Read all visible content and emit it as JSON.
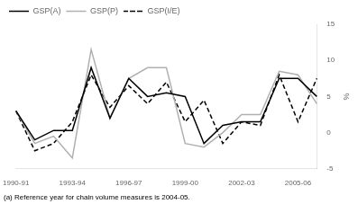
{
  "chart_data": {
    "type": "line",
    "categories": [
      "1990-91",
      null,
      null,
      "1993-94",
      null,
      null,
      "1996-97",
      null,
      null,
      "1999-00",
      null,
      null,
      "2002-03",
      null,
      null,
      "2005-06",
      null
    ],
    "series": [
      {
        "name": "GSP(A)",
        "color": "#000000",
        "line_style": "solid",
        "values": [
          3.0,
          -1.0,
          0.3,
          0.3,
          9.0,
          2.0,
          7.5,
          5.0,
          5.5,
          5.0,
          -1.5,
          1.0,
          1.5,
          1.5,
          7.5,
          7.5,
          5.0
        ]
      },
      {
        "name": "GSP(P)",
        "color": "#b0b0b0",
        "line_style": "solid",
        "values": [
          3.0,
          -1.5,
          -0.5,
          -3.5,
          11.5,
          2.0,
          7.5,
          9.0,
          9.0,
          -1.5,
          -2.0,
          0.0,
          2.5,
          2.5,
          8.5,
          8.0,
          4.0
        ]
      },
      {
        "name": "GSP(I/E)",
        "color": "#000000",
        "line_style": "dashed",
        "values": [
          3.0,
          -2.5,
          -1.5,
          1.5,
          8.0,
          3.5,
          6.5,
          4.0,
          7.0,
          1.5,
          4.5,
          -1.5,
          1.5,
          1.0,
          8.0,
          1.5,
          7.5
        ]
      }
    ],
    "y_label": "%",
    "ylim": [
      -5,
      15
    ],
    "yticks": [
      -5,
      0,
      5,
      10,
      15
    ],
    "grid": false,
    "legend": "upper left",
    "annotations": [
      "(a) Reference year for chain volume measures is 2004-05."
    ]
  }
}
